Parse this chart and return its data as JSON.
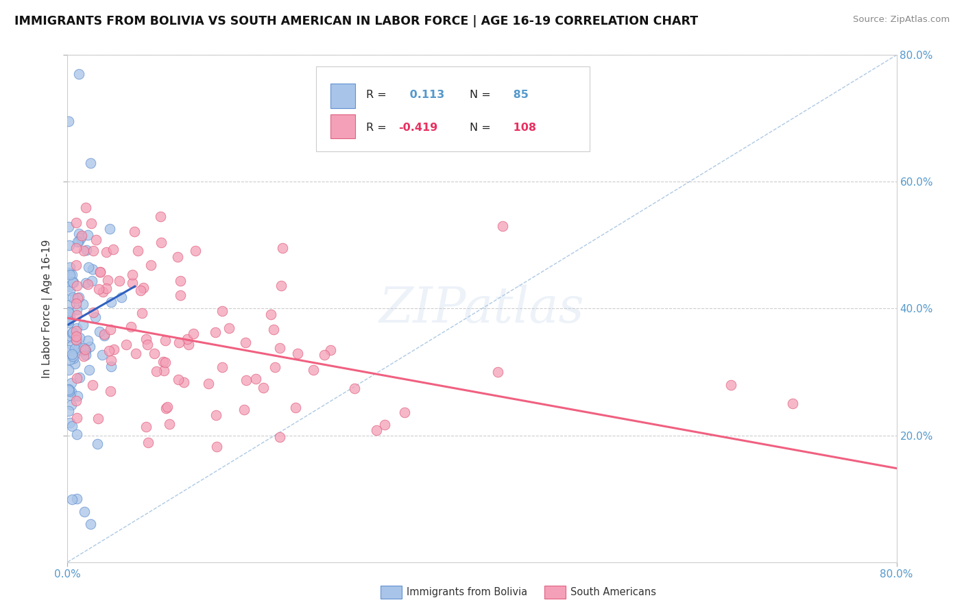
{
  "title": "IMMIGRANTS FROM BOLIVIA VS SOUTH AMERICAN IN LABOR FORCE | AGE 16-19 CORRELATION CHART",
  "source": "Source: ZipAtlas.com",
  "ylabel": "In Labor Force | Age 16-19",
  "xlim": [
    0.0,
    0.8
  ],
  "ylim": [
    0.0,
    0.8
  ],
  "bolivia_R": 0.113,
  "bolivia_N": 85,
  "south_R": -0.419,
  "south_N": 108,
  "bolivia_fill": "#a8c4e8",
  "bolivia_edge": "#6090d0",
  "south_fill": "#f4a0b8",
  "south_edge": "#e06080",
  "bolivia_line_color": "#3060c0",
  "south_line_color": "#f06080",
  "diag_line_color": "#99bbdd",
  "grid_color": "#cccccc",
  "legend_label_bolivia": "Immigrants from Bolivia",
  "legend_label_south": "South Americans",
  "watermark": "ZIPatlas",
  "tick_color": "#5599cc",
  "title_color": "#111111",
  "source_color": "#888888",
  "ylabel_color": "#333333"
}
